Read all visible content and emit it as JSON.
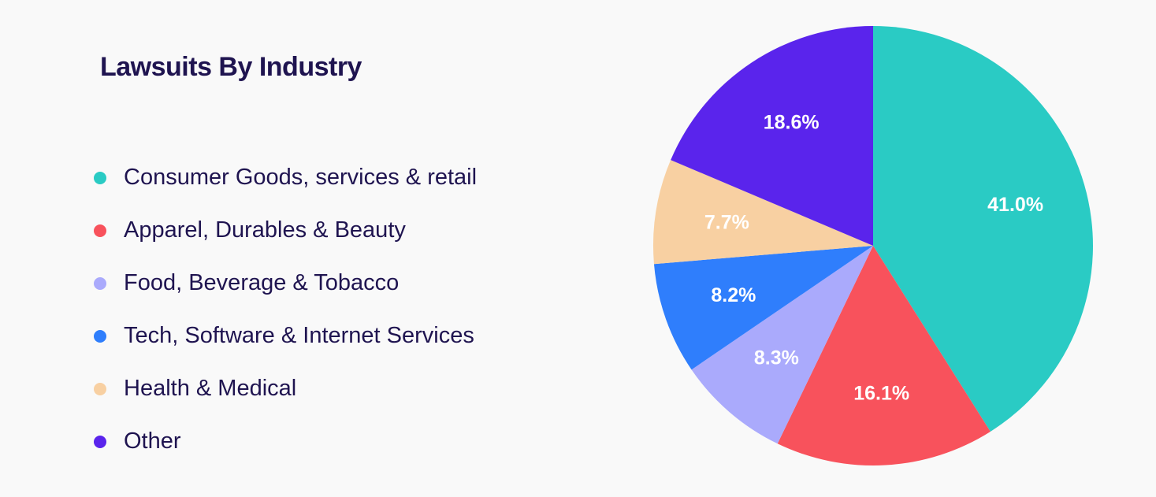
{
  "chart_data": {
    "type": "pie",
    "title": "Lawsuits By Industry",
    "categories": [
      "Consumer Goods, services & retail",
      "Apparel, Durables & Beauty",
      "Food, Beverage & Tobacco",
      "Tech, Software & Internet Services",
      "Health & Medical",
      "Other"
    ],
    "values": [
      41.0,
      16.1,
      8.3,
      8.2,
      7.7,
      18.6
    ],
    "value_labels": [
      "41.0%",
      "16.1%",
      "8.3%",
      "8.2%",
      "7.7%",
      "18.6%"
    ],
    "colors": [
      "#2acbc4",
      "#f8525c",
      "#aaaafc",
      "#2f7efc",
      "#f8d0a2",
      "#5a24ec"
    ],
    "legend_position": "left",
    "start_angle": "top",
    "direction": "clockwise"
  }
}
